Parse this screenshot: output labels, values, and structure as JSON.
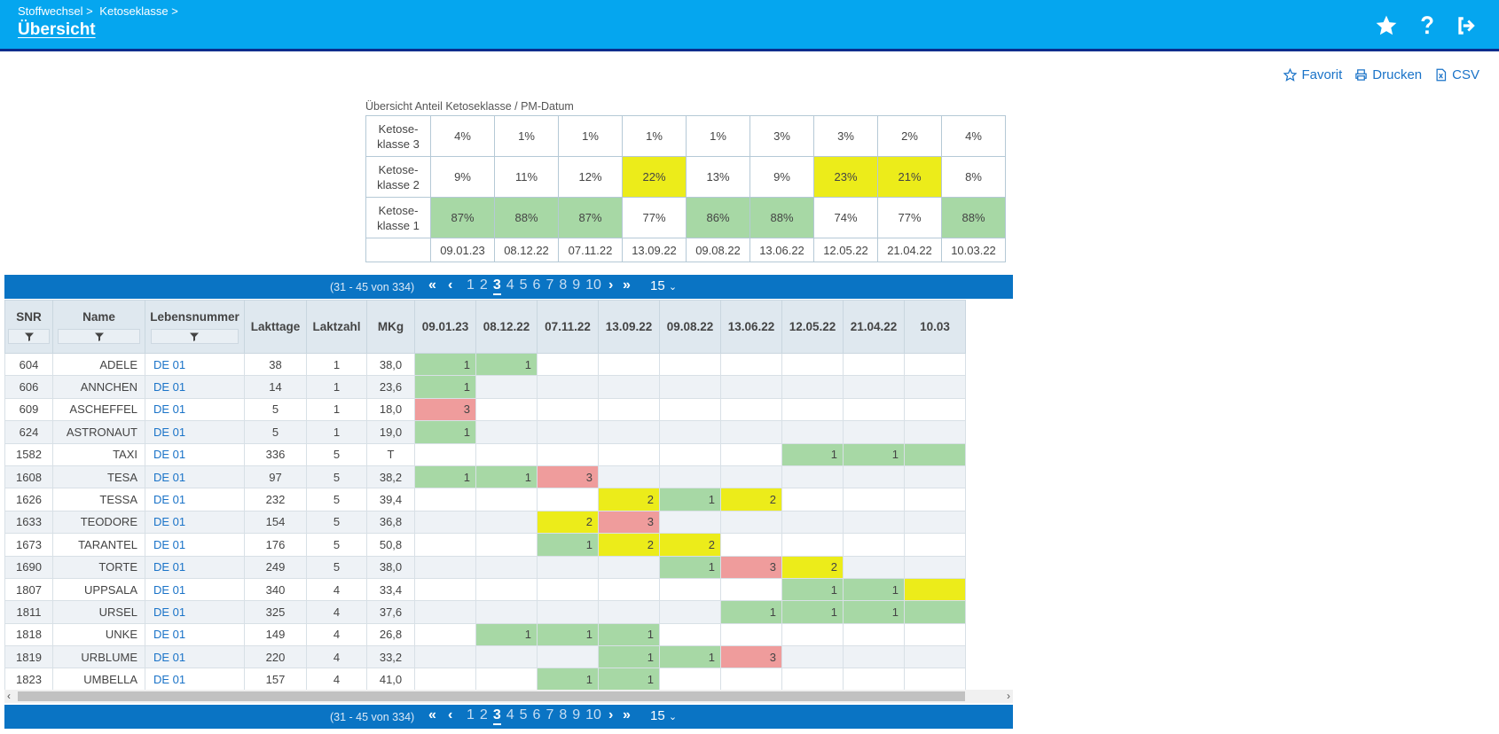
{
  "header": {
    "breadcrumb": [
      "Stoffwechsel >",
      "Ketoseklasse >"
    ],
    "title": "Übersicht"
  },
  "actions": {
    "favorite": "Favorit",
    "print": "Drucken",
    "csv": "CSV"
  },
  "summary": {
    "caption": "Übersicht Anteil Ketoseklasse / PM-Datum",
    "rows": [
      {
        "label1": "Ketose-",
        "label2": "klasse 3",
        "cells": [
          {
            "v": "4%",
            "c": ""
          },
          {
            "v": "1%",
            "c": ""
          },
          {
            "v": "1%",
            "c": ""
          },
          {
            "v": "1%",
            "c": ""
          },
          {
            "v": "1%",
            "c": ""
          },
          {
            "v": "3%",
            "c": ""
          },
          {
            "v": "3%",
            "c": ""
          },
          {
            "v": "2%",
            "c": ""
          },
          {
            "v": "4%",
            "c": ""
          }
        ]
      },
      {
        "label1": "Ketose-",
        "label2": "klasse 2",
        "cells": [
          {
            "v": "9%",
            "c": ""
          },
          {
            "v": "11%",
            "c": ""
          },
          {
            "v": "12%",
            "c": ""
          },
          {
            "v": "22%",
            "c": "yellow"
          },
          {
            "v": "13%",
            "c": ""
          },
          {
            "v": "9%",
            "c": ""
          },
          {
            "v": "23%",
            "c": "yellow"
          },
          {
            "v": "21%",
            "c": "yellow"
          },
          {
            "v": "8%",
            "c": ""
          }
        ]
      },
      {
        "label1": "Ketose-",
        "label2": "klasse 1",
        "cells": [
          {
            "v": "87%",
            "c": "green"
          },
          {
            "v": "88%",
            "c": "green"
          },
          {
            "v": "87%",
            "c": "green"
          },
          {
            "v": "77%",
            "c": ""
          },
          {
            "v": "86%",
            "c": "green"
          },
          {
            "v": "88%",
            "c": "green"
          },
          {
            "v": "74%",
            "c": ""
          },
          {
            "v": "77%",
            "c": ""
          },
          {
            "v": "88%",
            "c": "green"
          }
        ]
      }
    ],
    "dates": [
      "09.01.23",
      "08.12.22",
      "07.11.22",
      "13.09.22",
      "09.08.22",
      "13.06.22",
      "12.05.22",
      "21.04.22",
      "10.03.22"
    ]
  },
  "pager": {
    "range": "(31 - 45 von 334)",
    "pages": [
      "1",
      "2",
      "3",
      "4",
      "5",
      "6",
      "7",
      "8",
      "9",
      "10"
    ],
    "current": "3",
    "size": "15"
  },
  "grid": {
    "columns": [
      "SNR",
      "Name",
      "Lebensnummer",
      "Lakttage",
      "Laktzahl",
      "MKg",
      "09.01.23",
      "08.12.22",
      "07.11.22",
      "13.09.22",
      "09.08.22",
      "13.06.22",
      "12.05.22",
      "21.04.22",
      "10.03"
    ],
    "rows": [
      {
        "snr": "604",
        "name": "ADELE",
        "lnr": "DE 01",
        "lt": "38",
        "lz": "1",
        "mkg": "38,0",
        "k": [
          [
            "1",
            "green"
          ],
          [
            "1",
            "green"
          ],
          [
            "",
            ""
          ],
          [
            "",
            ""
          ],
          [
            "",
            ""
          ],
          [
            "",
            ""
          ],
          [
            "",
            ""
          ],
          [
            "",
            ""
          ],
          [
            "",
            ""
          ]
        ]
      },
      {
        "snr": "606",
        "name": "ANNCHEN",
        "lnr": "DE 01",
        "lt": "14",
        "lz": "1",
        "mkg": "23,6",
        "k": [
          [
            "1",
            "green"
          ],
          [
            "",
            ""
          ],
          [
            "",
            ""
          ],
          [
            "",
            ""
          ],
          [
            "",
            ""
          ],
          [
            "",
            ""
          ],
          [
            "",
            ""
          ],
          [
            "",
            ""
          ],
          [
            "",
            ""
          ]
        ]
      },
      {
        "snr": "609",
        "name": "ASCHEFFEL",
        "lnr": "DE 01",
        "lt": "5",
        "lz": "1",
        "mkg": "18,0",
        "k": [
          [
            "3",
            "red"
          ],
          [
            "",
            ""
          ],
          [
            "",
            ""
          ],
          [
            "",
            ""
          ],
          [
            "",
            ""
          ],
          [
            "",
            ""
          ],
          [
            "",
            ""
          ],
          [
            "",
            ""
          ],
          [
            "",
            ""
          ]
        ]
      },
      {
        "snr": "624",
        "name": "ASTRONAUT",
        "lnr": "DE 01",
        "lt": "5",
        "lz": "1",
        "mkg": "19,0",
        "k": [
          [
            "1",
            "green"
          ],
          [
            "",
            ""
          ],
          [
            "",
            ""
          ],
          [
            "",
            ""
          ],
          [
            "",
            ""
          ],
          [
            "",
            ""
          ],
          [
            "",
            ""
          ],
          [
            "",
            ""
          ],
          [
            "",
            ""
          ]
        ]
      },
      {
        "snr": "1582",
        "name": "TAXI",
        "lnr": "DE 01",
        "lt": "336",
        "lz": "5",
        "mkg": "T",
        "k": [
          [
            "",
            ""
          ],
          [
            "",
            ""
          ],
          [
            "",
            ""
          ],
          [
            "",
            ""
          ],
          [
            "",
            ""
          ],
          [
            "",
            ""
          ],
          [
            "1",
            "green"
          ],
          [
            "1",
            "green"
          ],
          [
            "",
            "green"
          ]
        ]
      },
      {
        "snr": "1608",
        "name": "TESA",
        "lnr": "DE 01",
        "lt": "97",
        "lz": "5",
        "mkg": "38,2",
        "k": [
          [
            "1",
            "green"
          ],
          [
            "1",
            "green"
          ],
          [
            "3",
            "red"
          ],
          [
            "",
            ""
          ],
          [
            "",
            ""
          ],
          [
            "",
            ""
          ],
          [
            "",
            ""
          ],
          [
            "",
            ""
          ],
          [
            "",
            ""
          ]
        ]
      },
      {
        "snr": "1626",
        "name": "TESSA",
        "lnr": "DE 01",
        "lt": "232",
        "lz": "5",
        "mkg": "39,4",
        "k": [
          [
            "",
            ""
          ],
          [
            "",
            ""
          ],
          [
            "",
            ""
          ],
          [
            "2",
            "yellow"
          ],
          [
            "1",
            "green"
          ],
          [
            "2",
            "yellow"
          ],
          [
            "",
            ""
          ],
          [
            "",
            ""
          ],
          [
            "",
            ""
          ]
        ]
      },
      {
        "snr": "1633",
        "name": "TEODORE",
        "lnr": "DE 01",
        "lt": "154",
        "lz": "5",
        "mkg": "36,8",
        "k": [
          [
            "",
            ""
          ],
          [
            "",
            ""
          ],
          [
            "2",
            "yellow"
          ],
          [
            "3",
            "red"
          ],
          [
            "",
            ""
          ],
          [
            "",
            ""
          ],
          [
            "",
            ""
          ],
          [
            "",
            ""
          ],
          [
            "",
            ""
          ]
        ]
      },
      {
        "snr": "1673",
        "name": "TARANTEL",
        "lnr": "DE 01",
        "lt": "176",
        "lz": "5",
        "mkg": "50,8",
        "k": [
          [
            "",
            ""
          ],
          [
            "",
            ""
          ],
          [
            "1",
            "green"
          ],
          [
            "2",
            "yellow"
          ],
          [
            "2",
            "yellow"
          ],
          [
            "",
            ""
          ],
          [
            "",
            ""
          ],
          [
            "",
            ""
          ],
          [
            "",
            ""
          ]
        ]
      },
      {
        "snr": "1690",
        "name": "TORTE",
        "lnr": "DE 01",
        "lt": "249",
        "lz": "5",
        "mkg": "38,0",
        "k": [
          [
            "",
            ""
          ],
          [
            "",
            ""
          ],
          [
            "",
            ""
          ],
          [
            "",
            ""
          ],
          [
            "1",
            "green"
          ],
          [
            "3",
            "red"
          ],
          [
            "2",
            "yellow"
          ],
          [
            "",
            ""
          ],
          [
            "",
            ""
          ]
        ]
      },
      {
        "snr": "1807",
        "name": "UPPSALA",
        "lnr": "DE 01",
        "lt": "340",
        "lz": "4",
        "mkg": "33,4",
        "k": [
          [
            "",
            ""
          ],
          [
            "",
            ""
          ],
          [
            "",
            ""
          ],
          [
            "",
            ""
          ],
          [
            "",
            ""
          ],
          [
            "",
            ""
          ],
          [
            "1",
            "green"
          ],
          [
            "1",
            "green"
          ],
          [
            "",
            "yellow"
          ]
        ]
      },
      {
        "snr": "1811",
        "name": "URSEL",
        "lnr": "DE 01",
        "lt": "325",
        "lz": "4",
        "mkg": "37,6",
        "k": [
          [
            "",
            ""
          ],
          [
            "",
            ""
          ],
          [
            "",
            ""
          ],
          [
            "",
            ""
          ],
          [
            "",
            ""
          ],
          [
            "1",
            "green"
          ],
          [
            "1",
            "green"
          ],
          [
            "1",
            "green"
          ],
          [
            "",
            "green"
          ]
        ]
      },
      {
        "snr": "1818",
        "name": "UNKE",
        "lnr": "DE 01",
        "lt": "149",
        "lz": "4",
        "mkg": "26,8",
        "k": [
          [
            "",
            ""
          ],
          [
            "1",
            "green"
          ],
          [
            "1",
            "green"
          ],
          [
            "1",
            "green"
          ],
          [
            "",
            ""
          ],
          [
            "",
            ""
          ],
          [
            "",
            ""
          ],
          [
            "",
            ""
          ],
          [
            "",
            ""
          ]
        ]
      },
      {
        "snr": "1819",
        "name": "URBLUME",
        "lnr": "DE 01",
        "lt": "220",
        "lz": "4",
        "mkg": "33,2",
        "k": [
          [
            "",
            ""
          ],
          [
            "",
            ""
          ],
          [
            "",
            ""
          ],
          [
            "1",
            "green"
          ],
          [
            "1",
            "green"
          ],
          [
            "3",
            "red"
          ],
          [
            "",
            ""
          ],
          [
            "",
            ""
          ],
          [
            "",
            ""
          ]
        ]
      },
      {
        "snr": "1823",
        "name": "UMBELLA",
        "lnr": "DE 01",
        "lt": "157",
        "lz": "4",
        "mkg": "41,0",
        "k": [
          [
            "",
            ""
          ],
          [
            "",
            ""
          ],
          [
            "1",
            "green"
          ],
          [
            "1",
            "green"
          ],
          [
            "",
            ""
          ],
          [
            "",
            ""
          ],
          [
            "",
            ""
          ],
          [
            "",
            ""
          ],
          [
            "",
            ""
          ]
        ]
      }
    ]
  }
}
